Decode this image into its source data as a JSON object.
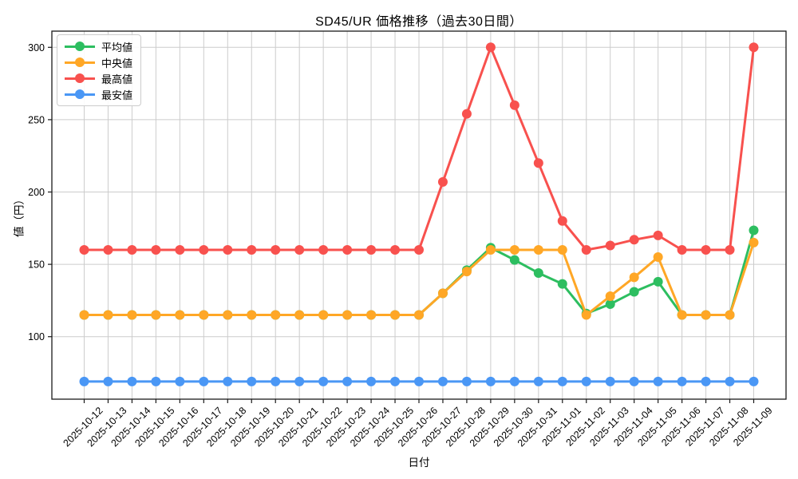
{
  "figure": {
    "background": "#ffffff",
    "grid_color": "#cccccc",
    "spine_color": "#1a1a1a",
    "text_color": "#000000"
  },
  "chart_data": {
    "type": "line",
    "title": "SD45/UR 価格推移（過去30日間）",
    "xlabel": "日付",
    "ylabel": "値（円）",
    "x": [
      "2025-10-12",
      "2025-10-13",
      "2025-10-14",
      "2025-10-15",
      "2025-10-16",
      "2025-10-17",
      "2025-10-18",
      "2025-10-19",
      "2025-10-20",
      "2025-10-21",
      "2025-10-22",
      "2025-10-23",
      "2025-10-24",
      "2025-10-25",
      "2025-10-26",
      "2025-10-27",
      "2025-10-28",
      "2025-10-29",
      "2025-10-30",
      "2025-10-31",
      "2025-11-01",
      "2025-11-02",
      "2025-11-03",
      "2025-11-04",
      "2025-11-05",
      "2025-11-06",
      "2025-11-07",
      "2025-11-08",
      "2025-11-09"
    ],
    "series": [
      {
        "name": "平均値",
        "color": "#2dbe60",
        "values": [
          115,
          115,
          115,
          115,
          115,
          115,
          115,
          115,
          115,
          115,
          115,
          115,
          115,
          115,
          115,
          130,
          146,
          161.5,
          153,
          144,
          136.5,
          116,
          122.5,
          131,
          138,
          115,
          115,
          115,
          173.5
        ]
      },
      {
        "name": "中央値",
        "color": "#ffa726",
        "values": [
          115,
          115,
          115,
          115,
          115,
          115,
          115,
          115,
          115,
          115,
          115,
          115,
          115,
          115,
          115,
          130,
          145,
          160,
          160,
          160,
          160,
          115,
          128,
          141,
          155,
          115,
          115,
          115,
          165
        ]
      },
      {
        "name": "最高値",
        "color": "#f8514e",
        "values": [
          160,
          160,
          160,
          160,
          160,
          160,
          160,
          160,
          160,
          160,
          160,
          160,
          160,
          160,
          160,
          207,
          254,
          300,
          260,
          220,
          180,
          160,
          163,
          167,
          170,
          160,
          160,
          160,
          300
        ]
      },
      {
        "name": "最安値",
        "color": "#4a97f5",
        "values": [
          69,
          69,
          69,
          69,
          69,
          69,
          69,
          69,
          69,
          69,
          69,
          69,
          69,
          69,
          69,
          69,
          69,
          69,
          69,
          69,
          69,
          69,
          69,
          69,
          69,
          69,
          69,
          69,
          69
        ]
      }
    ],
    "yticks": [
      100,
      150,
      200,
      250,
      300
    ],
    "ylim": [
      56.8,
      311.2
    ],
    "grid": true,
    "legend_position": "upper-left",
    "marker": "circle",
    "tick_label_rotation": 45
  }
}
